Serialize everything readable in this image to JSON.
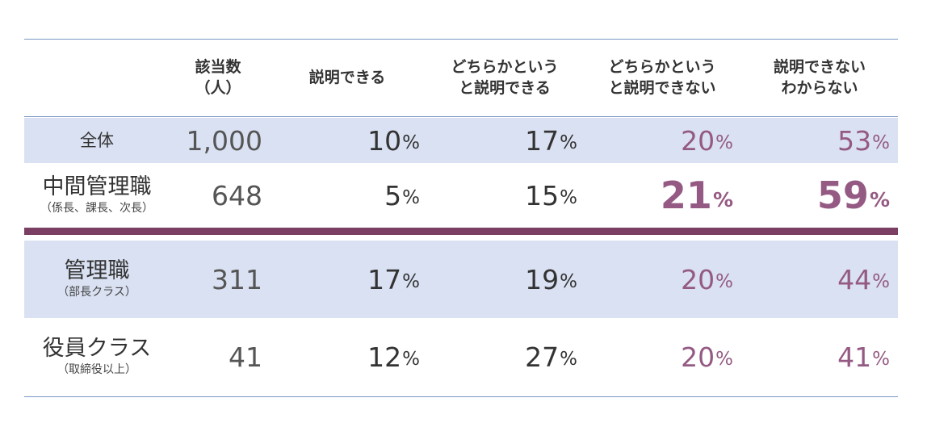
{
  "headers": {
    "count": "該当数\n（人）",
    "explain": "説明できる",
    "rather_explain": "どちらかという\nと説明できる",
    "rather_not": "どちらかという\nと説明できない",
    "cannot": "説明できない\nわからない"
  },
  "pct_sign": "%",
  "colors": {
    "shade": "#d9e1f2",
    "accent": "#7b3f63",
    "highlight": "#955a83",
    "rule": "#7a96c3"
  },
  "rows": [
    {
      "label": "全体",
      "sublabel": "",
      "count": "1,000",
      "v1": "10",
      "v2": "17",
      "v3": "20",
      "v4": "53"
    },
    {
      "label": "中間管理職",
      "sublabel": "（係長、課長、次長）",
      "count": "648",
      "v1": "5",
      "v2": "15",
      "v3": "21",
      "v4": "59"
    },
    {
      "label": "管理職",
      "sublabel": "（部長クラス）",
      "count": "311",
      "v1": "17",
      "v2": "19",
      "v3": "20",
      "v4": "44"
    },
    {
      "label": "役員クラス",
      "sublabel": "（取締役以上）",
      "count": "41",
      "v1": "12",
      "v2": "27",
      "v3": "20",
      "v4": "41"
    }
  ]
}
